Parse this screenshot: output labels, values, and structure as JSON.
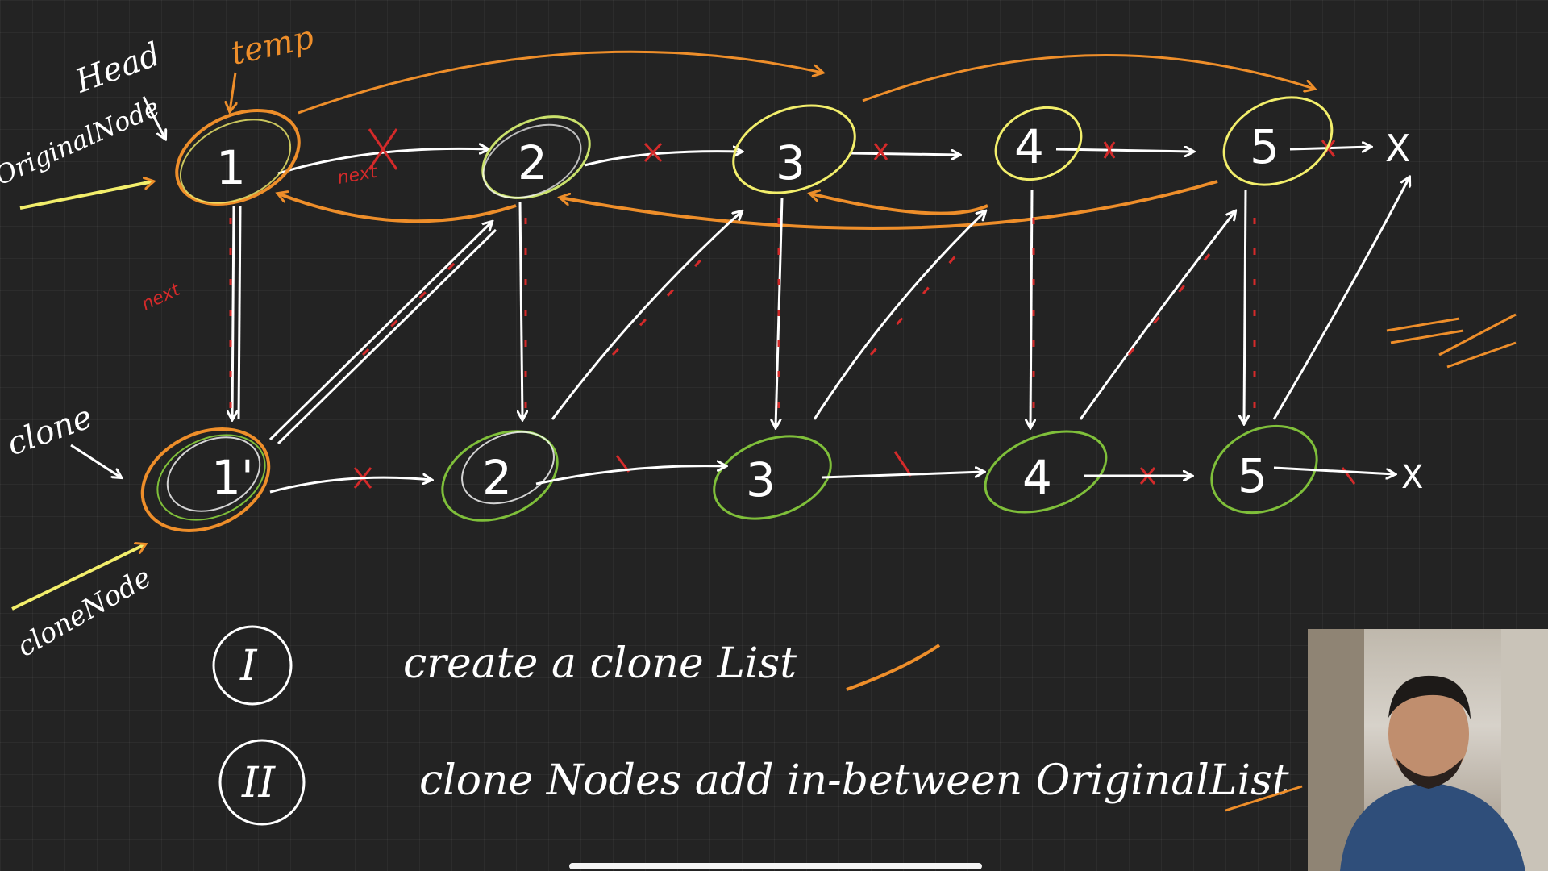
{
  "diagram": {
    "labels": {
      "head": "Head",
      "temp": "temp",
      "original_node": "OriginalNode",
      "clone": "clone",
      "clone_node": "cloneNode",
      "next_top": "next",
      "next_side": "next"
    },
    "original_nodes": [
      "1",
      "2",
      "3",
      "4",
      "5"
    ],
    "clone_nodes": [
      "1'",
      "2",
      "3",
      "4",
      "5"
    ],
    "null_markers": [
      "X",
      "X"
    ],
    "steps": [
      {
        "numeral": "I",
        "text": "create a clone List"
      },
      {
        "numeral": "II",
        "text": "clone Nodes add in-between OriginalList"
      }
    ]
  },
  "colors": {
    "background": "#232323",
    "ink_white": "#ffffff",
    "ink_orange": "#ee8e2a",
    "ink_yellow": "#f2ee6b",
    "ink_green": "#7fbf3a",
    "ink_red": "#d42a2a"
  },
  "webcam": {
    "icon": "person-icon"
  }
}
